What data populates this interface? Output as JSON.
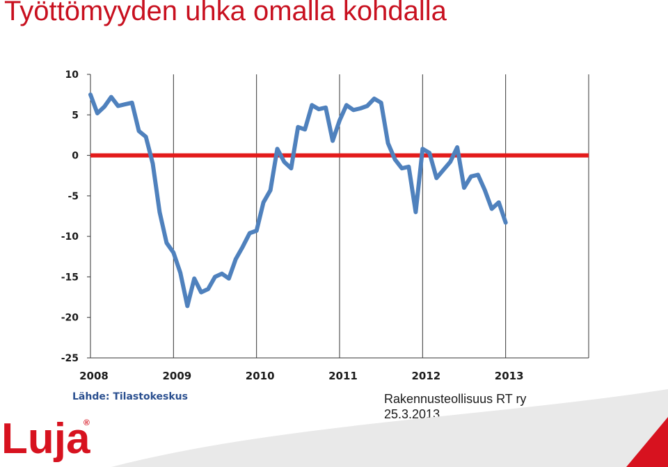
{
  "header": {
    "title": "Työttömyyden uhka omalla kohdalla"
  },
  "footer": {
    "source": "Lähde: Tilastokeskus",
    "organization": "Rakennusteollisuus RT ry",
    "date": "25.3.2013",
    "logo_text": "Luja",
    "registered_mark": "®"
  },
  "colors": {
    "title": "#c8101f",
    "series": "#4f81bd",
    "zero_line": "#e31b1b",
    "logo": "#d7121f"
  },
  "chart_data": {
    "type": "line",
    "title": "",
    "xlabel": "",
    "ylabel": "",
    "ylim": [
      -25,
      10
    ],
    "xlim": [
      2008,
      2014
    ],
    "yticks": [
      10,
      5,
      0,
      -5,
      -10,
      -15,
      -20,
      -25
    ],
    "xticks": [
      2008,
      2009,
      2010,
      2011,
      2012,
      2013
    ],
    "grid": "vertical",
    "reference_line": {
      "y": 0,
      "color": "#e31b1b"
    },
    "series": [
      {
        "color": "#4f81bd",
        "points": [
          [
            2008.0,
            7.5
          ],
          [
            2008.083,
            5.2
          ],
          [
            2008.167,
            6.0
          ],
          [
            2008.25,
            7.2
          ],
          [
            2008.333,
            6.1
          ],
          [
            2008.417,
            6.3
          ],
          [
            2008.5,
            6.5
          ],
          [
            2008.583,
            3.0
          ],
          [
            2008.667,
            2.3
          ],
          [
            2008.75,
            -1.0
          ],
          [
            2008.833,
            -7.0
          ],
          [
            2008.917,
            -10.8
          ],
          [
            2009.0,
            -12.0
          ],
          [
            2009.083,
            -14.5
          ],
          [
            2009.167,
            -18.6
          ],
          [
            2009.25,
            -15.2
          ],
          [
            2009.333,
            -16.9
          ],
          [
            2009.417,
            -16.5
          ],
          [
            2009.5,
            -15.0
          ],
          [
            2009.583,
            -14.6
          ],
          [
            2009.667,
            -15.2
          ],
          [
            2009.75,
            -12.8
          ],
          [
            2009.833,
            -11.3
          ],
          [
            2009.917,
            -9.6
          ],
          [
            2010.0,
            -9.3
          ],
          [
            2010.083,
            -5.8
          ],
          [
            2010.167,
            -4.3
          ],
          [
            2010.25,
            0.8
          ],
          [
            2010.333,
            -0.8
          ],
          [
            2010.417,
            -1.6
          ],
          [
            2010.5,
            3.5
          ],
          [
            2010.583,
            3.2
          ],
          [
            2010.667,
            6.2
          ],
          [
            2010.75,
            5.7
          ],
          [
            2010.833,
            5.9
          ],
          [
            2010.917,
            1.8
          ],
          [
            2011.0,
            4.3
          ],
          [
            2011.083,
            6.2
          ],
          [
            2011.167,
            5.6
          ],
          [
            2011.25,
            5.8
          ],
          [
            2011.333,
            6.1
          ],
          [
            2011.417,
            7.0
          ],
          [
            2011.5,
            6.5
          ],
          [
            2011.583,
            1.5
          ],
          [
            2011.667,
            -0.5
          ],
          [
            2011.75,
            -1.6
          ],
          [
            2011.833,
            -1.4
          ],
          [
            2011.917,
            -7.0
          ],
          [
            2012.0,
            0.8
          ],
          [
            2012.083,
            0.3
          ],
          [
            2012.167,
            -2.8
          ],
          [
            2012.25,
            -1.8
          ],
          [
            2012.333,
            -0.8
          ],
          [
            2012.417,
            1.0
          ],
          [
            2012.5,
            -4.0
          ],
          [
            2012.583,
            -2.6
          ],
          [
            2012.667,
            -2.4
          ],
          [
            2012.75,
            -4.3
          ],
          [
            2012.833,
            -6.6
          ],
          [
            2012.917,
            -5.8
          ],
          [
            2013.0,
            -8.3
          ]
        ]
      }
    ]
  }
}
